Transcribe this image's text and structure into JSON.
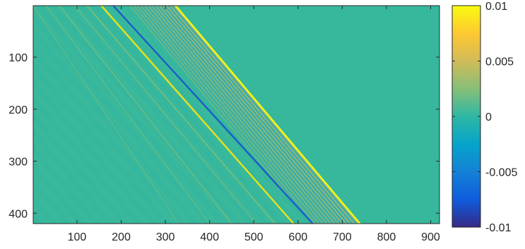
{
  "chart_data": {
    "type": "heatmap",
    "title": "",
    "xlabel": "",
    "ylabel": "",
    "xlim": [
      1,
      920
    ],
    "ylim": [
      1,
      420
    ],
    "y_reversed": true,
    "x_ticks": [
      100,
      200,
      300,
      400,
      500,
      600,
      700,
      800,
      900
    ],
    "y_ticks": [
      100,
      200,
      300,
      400
    ],
    "colorbar": {
      "colormap": "parula",
      "clim": [
        -0.01,
        0.01
      ],
      "ticks": [
        0.01,
        0.005,
        0,
        -0.005,
        -0.01
      ],
      "tick_labels": [
        "0.01",
        "0.005",
        "0",
        "-0.005",
        "-0.01"
      ],
      "colors": [
        "#352a87",
        "#0f5cdd",
        "#1481d6",
        "#06a4ca",
        "#2eb7a4",
        "#87bf77",
        "#d1bb59",
        "#fec832",
        "#f9fb0e"
      ]
    },
    "background_value": 0,
    "background_color": "#37b89d",
    "bands": [
      {
        "x_at_top": 323,
        "x_at_bottom": 740,
        "value": 0.01,
        "color": "#f9fb0e"
      },
      {
        "x_at_top": 182,
        "x_at_bottom": 633,
        "value": -0.007,
        "color": "#1c5dc7"
      },
      {
        "x_at_top": 155,
        "x_at_bottom": 590,
        "value": 0.01,
        "color": "#e8e21a"
      },
      {
        "x_at_top": 122,
        "x_at_bottom": 548,
        "value": 0.003,
        "color": "#9cbf6a"
      },
      {
        "x_at_top": 95,
        "x_at_bottom": 505,
        "value": 0.002,
        "color": "#7fbc78"
      },
      {
        "x_at_top": 60,
        "x_at_bottom": 450,
        "value": 0.002,
        "color": "#86bd74"
      },
      {
        "x_at_top": 30,
        "x_at_bottom": 400,
        "value": 0.0015,
        "color": "#72bb7d"
      },
      {
        "x_at_top": 1,
        "x_at_bottom": 330,
        "value": 0.0015,
        "color": "#6dba80"
      }
    ],
    "oscillation_zone": {
      "x_start_at_top": 220,
      "x_start_at_bottom": 630,
      "x_end_at_top": 323,
      "x_end_at_bottom": 740,
      "amplitude": 0.006
    }
  }
}
